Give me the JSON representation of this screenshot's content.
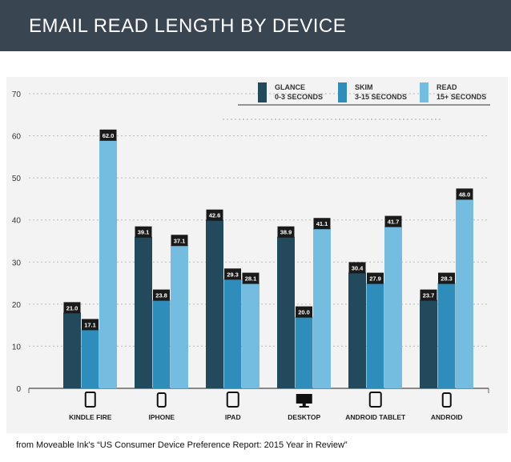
{
  "title": "EMAIL READ LENGTH BY DEVICE",
  "source": "from Moveable Ink's “US Consumer Device  Preference Report: 2015 Year in Review”",
  "legend": [
    {
      "line1": "GLANCE",
      "line2": "0-3 SECONDS"
    },
    {
      "line1": "SKIM",
      "line2": "3-15 SECONDS"
    },
    {
      "line1": "READ",
      "line2": "15+ SECONDS"
    }
  ],
  "colors": {
    "glance": "#234a5c",
    "skim": "#2f8dbb",
    "read": "#74bde0",
    "label_bg": "#1a1a1a",
    "panel": "#f3f3f3",
    "header": "#3a4552"
  },
  "chart_data": {
    "type": "bar",
    "title": "EMAIL READ LENGTH BY DEVICE",
    "categories": [
      "KINDLE FIRE",
      "IPHONE",
      "IPAD",
      "DESKTOP",
      "ANDROID TABLET",
      "ANDROID"
    ],
    "category_icons": [
      "kindle-icon",
      "phone-icon",
      "tablet-icon",
      "monitor-icon",
      "tablet-icon",
      "phone-icon"
    ],
    "series": [
      {
        "name": "GLANCE 0-3 SECONDS",
        "values": [
          21.0,
          39.1,
          42.6,
          38.9,
          30.4,
          23.7
        ]
      },
      {
        "name": "SKIM 3-15 SECONDS",
        "values": [
          17.1,
          23.8,
          29.3,
          20.0,
          27.9,
          28.3
        ]
      },
      {
        "name": "READ 15+ SECONDS",
        "values": [
          62.0,
          37.1,
          28.1,
          41.1,
          41.7,
          48.0
        ]
      }
    ],
    "data_labels": [
      [
        "21.0",
        "39.1",
        "42.6",
        "38.9",
        "30.4",
        "23.7"
      ],
      [
        "17.1",
        "23.8",
        "29.3",
        "20.0",
        "27.9",
        "28.3"
      ],
      [
        "62.0",
        "37.1",
        "28.1",
        "41.1",
        "41.7",
        "48.0"
      ]
    ],
    "bar_tops": [
      [
        18,
        36,
        40,
        36,
        27.5,
        21
      ],
      [
        14,
        21,
        26,
        17,
        25,
        25
      ],
      [
        59,
        34,
        25,
        38,
        38.5,
        45
      ]
    ],
    "yticks": [
      0,
      10,
      20,
      30,
      40,
      50,
      60,
      70
    ],
    "ylim": [
      0,
      70
    ],
    "grid": true,
    "legend_position": "top-right"
  }
}
